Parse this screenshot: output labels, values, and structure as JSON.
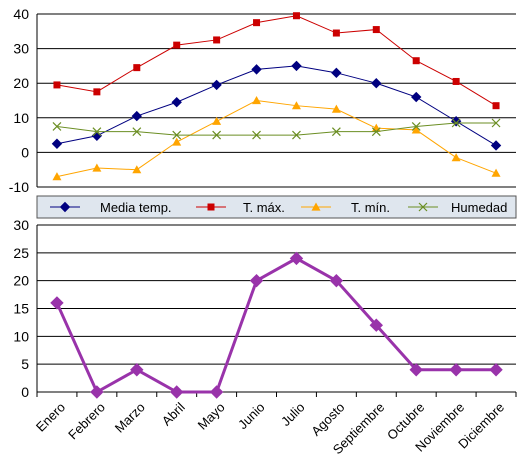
{
  "colors": {
    "media": "#000080",
    "tmax": "#cc0000",
    "tmin": "#ffa500",
    "humedad": "#6b8e23",
    "lower": "#9933aa",
    "grid": "#000000",
    "legend_bg": "#dfe6ee"
  },
  "chart_data": [
    {
      "type": "line",
      "categories": [
        "Enero",
        "Febrero",
        "Marzo",
        "Abril",
        "Mayo",
        "Junio",
        "Julio",
        "Agosto",
        "Septiembre",
        "Octubre",
        "Noviembre",
        "Diciembre"
      ],
      "ylim": [
        -10,
        40
      ],
      "yticks": [
        "-10",
        "0",
        "10",
        "20",
        "30",
        "40"
      ],
      "grid": true,
      "legend_position": "bottom",
      "series": [
        {
          "name": "Media temp.",
          "marker": "diamond",
          "values": [
            2.5,
            4.8,
            10.5,
            14.5,
            19.5,
            24,
            25,
            23,
            20,
            16,
            9,
            2
          ]
        },
        {
          "name": "T. máx.",
          "marker": "square",
          "values": [
            19.5,
            17.5,
            24.5,
            31,
            32.5,
            37.5,
            39.5,
            34.5,
            35.5,
            26.5,
            20.5,
            13.5
          ]
        },
        {
          "name": "T. mín.",
          "marker": "triangle",
          "values": [
            -7,
            -4.5,
            -5,
            3,
            9,
            15,
            13.5,
            12.5,
            7,
            6.5,
            -1.5,
            -6
          ]
        },
        {
          "name": "Humedad",
          "marker": "x",
          "values": [
            7.5,
            6,
            6,
            5,
            5,
            5,
            5,
            6,
            6,
            7.5,
            8.5,
            8.5
          ]
        }
      ]
    },
    {
      "type": "line",
      "categories": [
        "Enero",
        "Febrero",
        "Marzo",
        "Abril",
        "Mayo",
        "Junio",
        "Julio",
        "Agosto",
        "Septiembre",
        "Octubre",
        "Noviembre",
        "Diciembre"
      ],
      "ylim": [
        0,
        30
      ],
      "yticks": [
        "0",
        "5",
        "10",
        "15",
        "20",
        "25",
        "30"
      ],
      "grid": true,
      "series": [
        {
          "marker": "diamond",
          "values": [
            16,
            0,
            4,
            0,
            0,
            20,
            24,
            20,
            12,
            4,
            4,
            4
          ]
        }
      ]
    }
  ]
}
